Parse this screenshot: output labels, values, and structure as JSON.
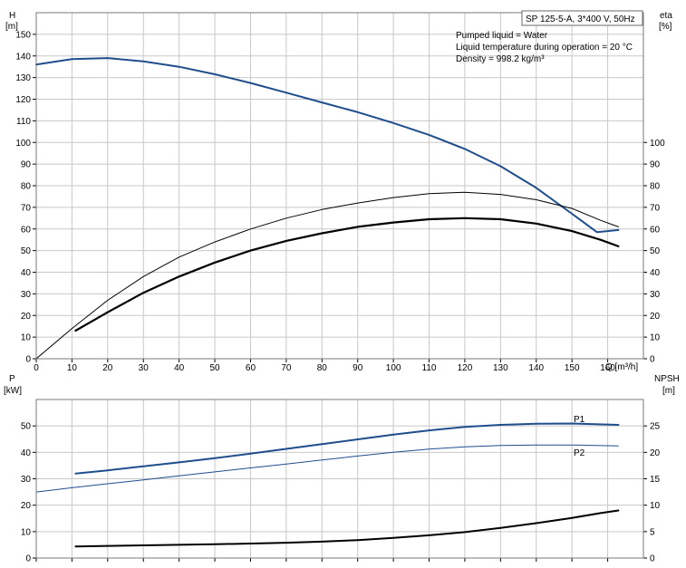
{
  "chart_data": [
    {
      "type": "line",
      "panel": "top",
      "left_axis": {
        "label_line1": "H",
        "label_line2": "[m]",
        "ylim": [
          0,
          160
        ],
        "ticks": [
          0,
          10,
          20,
          30,
          40,
          50,
          60,
          70,
          80,
          90,
          100,
          110,
          120,
          130,
          140,
          150
        ]
      },
      "right_axis": {
        "label_line1": "eta",
        "label_line2": "[%]",
        "ylim": [
          0,
          160
        ],
        "ticks": [
          0,
          10,
          20,
          30,
          40,
          50,
          60,
          70,
          80,
          90,
          100
        ]
      },
      "x_axis": {
        "label": "Q [m³/h]",
        "xlim": [
          0,
          170
        ],
        "ticks": [
          0,
          10,
          20,
          30,
          40,
          50,
          60,
          70,
          80,
          90,
          100,
          110,
          120,
          130,
          140,
          150,
          160
        ]
      },
      "grid": true,
      "info_box": {
        "title": "SP 125-5-A, 3*400 V, 50Hz",
        "lines": [
          "Pumped liquid = Water",
          "Liquid temperature during operation = 20 °C",
          "Density = 998.2 kg/m³"
        ]
      },
      "series": [
        {
          "axis": "left",
          "color": "#1f4e8c",
          "width": 2,
          "points": [
            [
              0,
              136
            ],
            [
              10,
              138.5
            ],
            [
              20,
              139
            ],
            [
              30,
              137.5
            ],
            [
              40,
              135
            ],
            [
              50,
              131.5
            ],
            [
              60,
              127.5
            ],
            [
              70,
              123
            ],
            [
              80,
              118.5
            ],
            [
              90,
              114
            ],
            [
              100,
              109
            ],
            [
              110,
              103.5
            ],
            [
              120,
              97
            ],
            [
              130,
              89
            ],
            [
              140,
              79
            ],
            [
              150,
              67
            ],
            [
              157,
              58.5
            ],
            [
              163,
              59.5
            ]
          ]
        },
        {
          "axis": "right",
          "color": "#000000",
          "width": 1,
          "points": [
            [
              0,
              0
            ],
            [
              10,
              14
            ],
            [
              20,
              27
            ],
            [
              30,
              38
            ],
            [
              40,
              47
            ],
            [
              50,
              54
            ],
            [
              60,
              60
            ],
            [
              70,
              65
            ],
            [
              80,
              69
            ],
            [
              90,
              72
            ],
            [
              100,
              74.5
            ],
            [
              110,
              76.3
            ],
            [
              120,
              77
            ],
            [
              130,
              76
            ],
            [
              140,
              73.5
            ],
            [
              150,
              69.5
            ],
            [
              158,
              64
            ],
            [
              163,
              61
            ]
          ]
        },
        {
          "axis": "right",
          "color": "#000000",
          "width": 2.2,
          "points": [
            [
              11,
              13
            ],
            [
              20,
              21.5
            ],
            [
              30,
              30.5
            ],
            [
              40,
              38
            ],
            [
              50,
              44.5
            ],
            [
              60,
              50
            ],
            [
              70,
              54.5
            ],
            [
              80,
              58
            ],
            [
              90,
              61
            ],
            [
              100,
              63
            ],
            [
              110,
              64.5
            ],
            [
              120,
              65
            ],
            [
              130,
              64.5
            ],
            [
              140,
              62.5
            ],
            [
              150,
              59
            ],
            [
              158,
              55
            ],
            [
              163,
              52
            ]
          ]
        }
      ]
    },
    {
      "type": "line",
      "panel": "bottom",
      "left_axis": {
        "label_line1": "P",
        "label_line2": "[kW]",
        "ylim": [
          0,
          60
        ],
        "ticks": [
          0,
          10,
          20,
          30,
          40,
          50
        ]
      },
      "right_axis": {
        "label_line1": "NPSH",
        "label_line2": "[m]",
        "ylim": [
          0,
          30
        ],
        "ticks": [
          0,
          5,
          10,
          15,
          20,
          25
        ]
      },
      "x_axis": {
        "xlim": [
          0,
          170
        ]
      },
      "grid": true,
      "series": [
        {
          "name": "P1",
          "axis": "left",
          "color": "#1f4e8c",
          "width": 2,
          "points": [
            [
              11,
              32
            ],
            [
              20,
              33.2
            ],
            [
              30,
              34.7
            ],
            [
              40,
              36.2
            ],
            [
              50,
              37.8
            ],
            [
              60,
              39.5
            ],
            [
              70,
              41.3
            ],
            [
              80,
              43.1
            ],
            [
              90,
              44.9
            ],
            [
              100,
              46.7
            ],
            [
              110,
              48.3
            ],
            [
              120,
              49.6
            ],
            [
              130,
              50.4
            ],
            [
              140,
              50.8
            ],
            [
              150,
              50.9
            ],
            [
              163,
              50.4
            ]
          ]
        },
        {
          "name": "P2",
          "axis": "left",
          "color": "#1f4e8c",
          "width": 1,
          "points": [
            [
              0,
              25
            ],
            [
              10,
              26.6
            ],
            [
              20,
              28.1
            ],
            [
              30,
              29.6
            ],
            [
              40,
              31.1
            ],
            [
              50,
              32.6
            ],
            [
              60,
              34.1
            ],
            [
              70,
              35.6
            ],
            [
              80,
              37.1
            ],
            [
              90,
              38.6
            ],
            [
              100,
              40
            ],
            [
              110,
              41.2
            ],
            [
              120,
              42.1
            ],
            [
              130,
              42.6
            ],
            [
              140,
              42.8
            ],
            [
              150,
              42.8
            ],
            [
              163,
              42.4
            ]
          ]
        },
        {
          "axis": "right",
          "color": "#000000",
          "width": 2,
          "points": [
            [
              11,
              2.2
            ],
            [
              20,
              2.3
            ],
            [
              30,
              2.4
            ],
            [
              40,
              2.5
            ],
            [
              50,
              2.6
            ],
            [
              60,
              2.75
            ],
            [
              70,
              2.9
            ],
            [
              80,
              3.1
            ],
            [
              90,
              3.4
            ],
            [
              100,
              3.8
            ],
            [
              110,
              4.3
            ],
            [
              120,
              4.9
            ],
            [
              130,
              5.7
            ],
            [
              140,
              6.6
            ],
            [
              150,
              7.6
            ],
            [
              158,
              8.5
            ],
            [
              163,
              9
            ]
          ]
        }
      ]
    }
  ]
}
